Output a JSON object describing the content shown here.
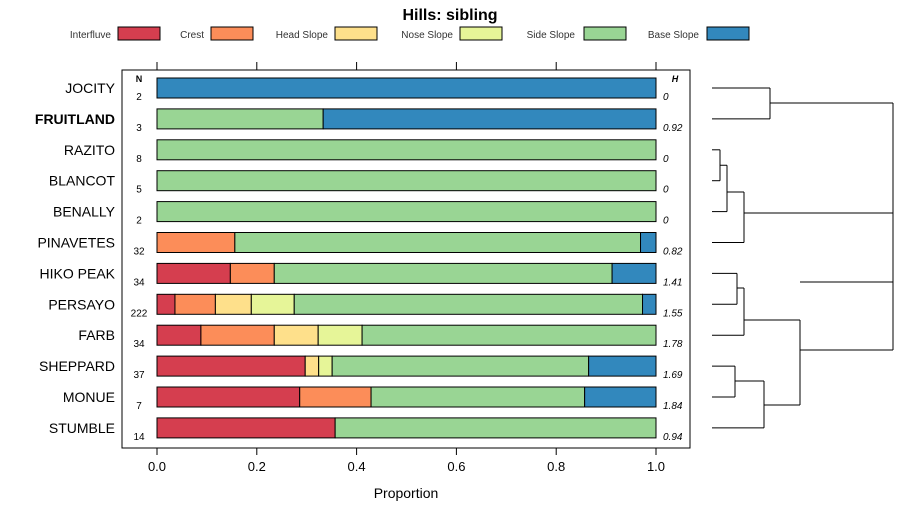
{
  "chart_data": {
    "type": "bar",
    "orientation": "horizontal-stacked",
    "title": "Hills: sibling",
    "xlabel": "Proportion",
    "xlim": [
      0,
      1
    ],
    "xticks": [
      "0.0",
      "0.2",
      "0.4",
      "0.6",
      "0.8",
      "1.0"
    ],
    "n_header": "N",
    "h_header": "H",
    "legend": [
      {
        "name": "Interfluve",
        "color": "#d53e4f"
      },
      {
        "name": "Crest",
        "color": "#fc8d59"
      },
      {
        "name": "Head Slope",
        "color": "#fee08b"
      },
      {
        "name": "Nose Slope",
        "color": "#e6f598"
      },
      {
        "name": "Side Slope",
        "color": "#99d594"
      },
      {
        "name": "Base Slope",
        "color": "#3288bd"
      }
    ],
    "rows": [
      {
        "label": "JOCITY",
        "n": "2",
        "h": "0",
        "bold": false,
        "values": [
          0,
          0,
          0,
          0,
          0,
          1.0
        ]
      },
      {
        "label": "FRUITLAND",
        "n": "3",
        "h": "0.92",
        "bold": true,
        "values": [
          0,
          0,
          0,
          0,
          0.333,
          0.667
        ]
      },
      {
        "label": "RAZITO",
        "n": "8",
        "h": "0",
        "bold": false,
        "values": [
          0,
          0,
          0,
          0,
          1.0,
          0
        ]
      },
      {
        "label": "BLANCOT",
        "n": "5",
        "h": "0",
        "bold": false,
        "values": [
          0,
          0,
          0,
          0,
          1.0,
          0
        ]
      },
      {
        "label": "BENALLY",
        "n": "2",
        "h": "0",
        "bold": false,
        "values": [
          0,
          0,
          0,
          0,
          1.0,
          0
        ]
      },
      {
        "label": "PINAVETES",
        "n": "32",
        "h": "0.82",
        "bold": false,
        "values": [
          0,
          0.156,
          0,
          0,
          0.813,
          0.031
        ]
      },
      {
        "label": "HIKO PEAK",
        "n": "34",
        "h": "1.41",
        "bold": false,
        "values": [
          0.147,
          0.088,
          0,
          0,
          0.677,
          0.088
        ]
      },
      {
        "label": "PERSAYO",
        "n": "222",
        "h": "1.55",
        "bold": false,
        "values": [
          0.036,
          0.081,
          0.072,
          0.086,
          0.698,
          0.027
        ]
      },
      {
        "label": "FARB",
        "n": "34",
        "h": "1.78",
        "bold": false,
        "values": [
          0.088,
          0.147,
          0.088,
          0.088,
          0.589,
          0
        ]
      },
      {
        "label": "SHEPPARD",
        "n": "37",
        "h": "1.69",
        "bold": false,
        "values": [
          0.297,
          0,
          0.027,
          0.027,
          0.514,
          0.135
        ]
      },
      {
        "label": "MONUE",
        "n": "7",
        "h": "1.84",
        "bold": false,
        "values": [
          0.286,
          0.143,
          0,
          0,
          0.428,
          0.143
        ]
      },
      {
        "label": "STUMBLE",
        "n": "14",
        "h": "0.94",
        "bold": false,
        "values": [
          0.357,
          0,
          0,
          0,
          0.643,
          0
        ]
      }
    ]
  }
}
